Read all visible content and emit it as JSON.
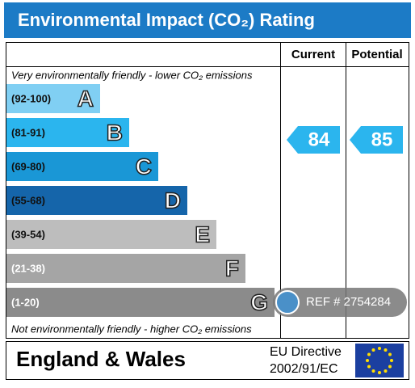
{
  "header": {
    "title": "Environmental Impact (CO₂) Rating"
  },
  "columns": {
    "current": "Current",
    "potential": "Potential"
  },
  "top_note": "Very environmentally friendly - lower CO₂ emissions",
  "bottom_note": "Not environmentally friendly - higher CO₂ emissions",
  "bands": [
    {
      "range": "(92-100)",
      "letter": "A",
      "color": "#80cff3"
    },
    {
      "range": "(81-91)",
      "letter": "B",
      "color": "#2bb5ee"
    },
    {
      "range": "(69-80)",
      "letter": "C",
      "color": "#1a97d6"
    },
    {
      "range": "(55-68)",
      "letter": "D",
      "color": "#1565aa"
    },
    {
      "range": "(39-54)",
      "letter": "E",
      "color": "#bdbdbd"
    },
    {
      "range": "(21-38)",
      "letter": "F",
      "color": "#a5a5a5"
    },
    {
      "range": "(1-20)",
      "letter": "G",
      "color": "#8b8b8b"
    }
  ],
  "ratings": {
    "current": 84,
    "potential": 85,
    "color": "#2bb5ee"
  },
  "watermark": "REF # 2754284",
  "footer": {
    "region": "England & Wales",
    "directive_line1": "EU Directive",
    "directive_line2": "2002/91/EC"
  }
}
